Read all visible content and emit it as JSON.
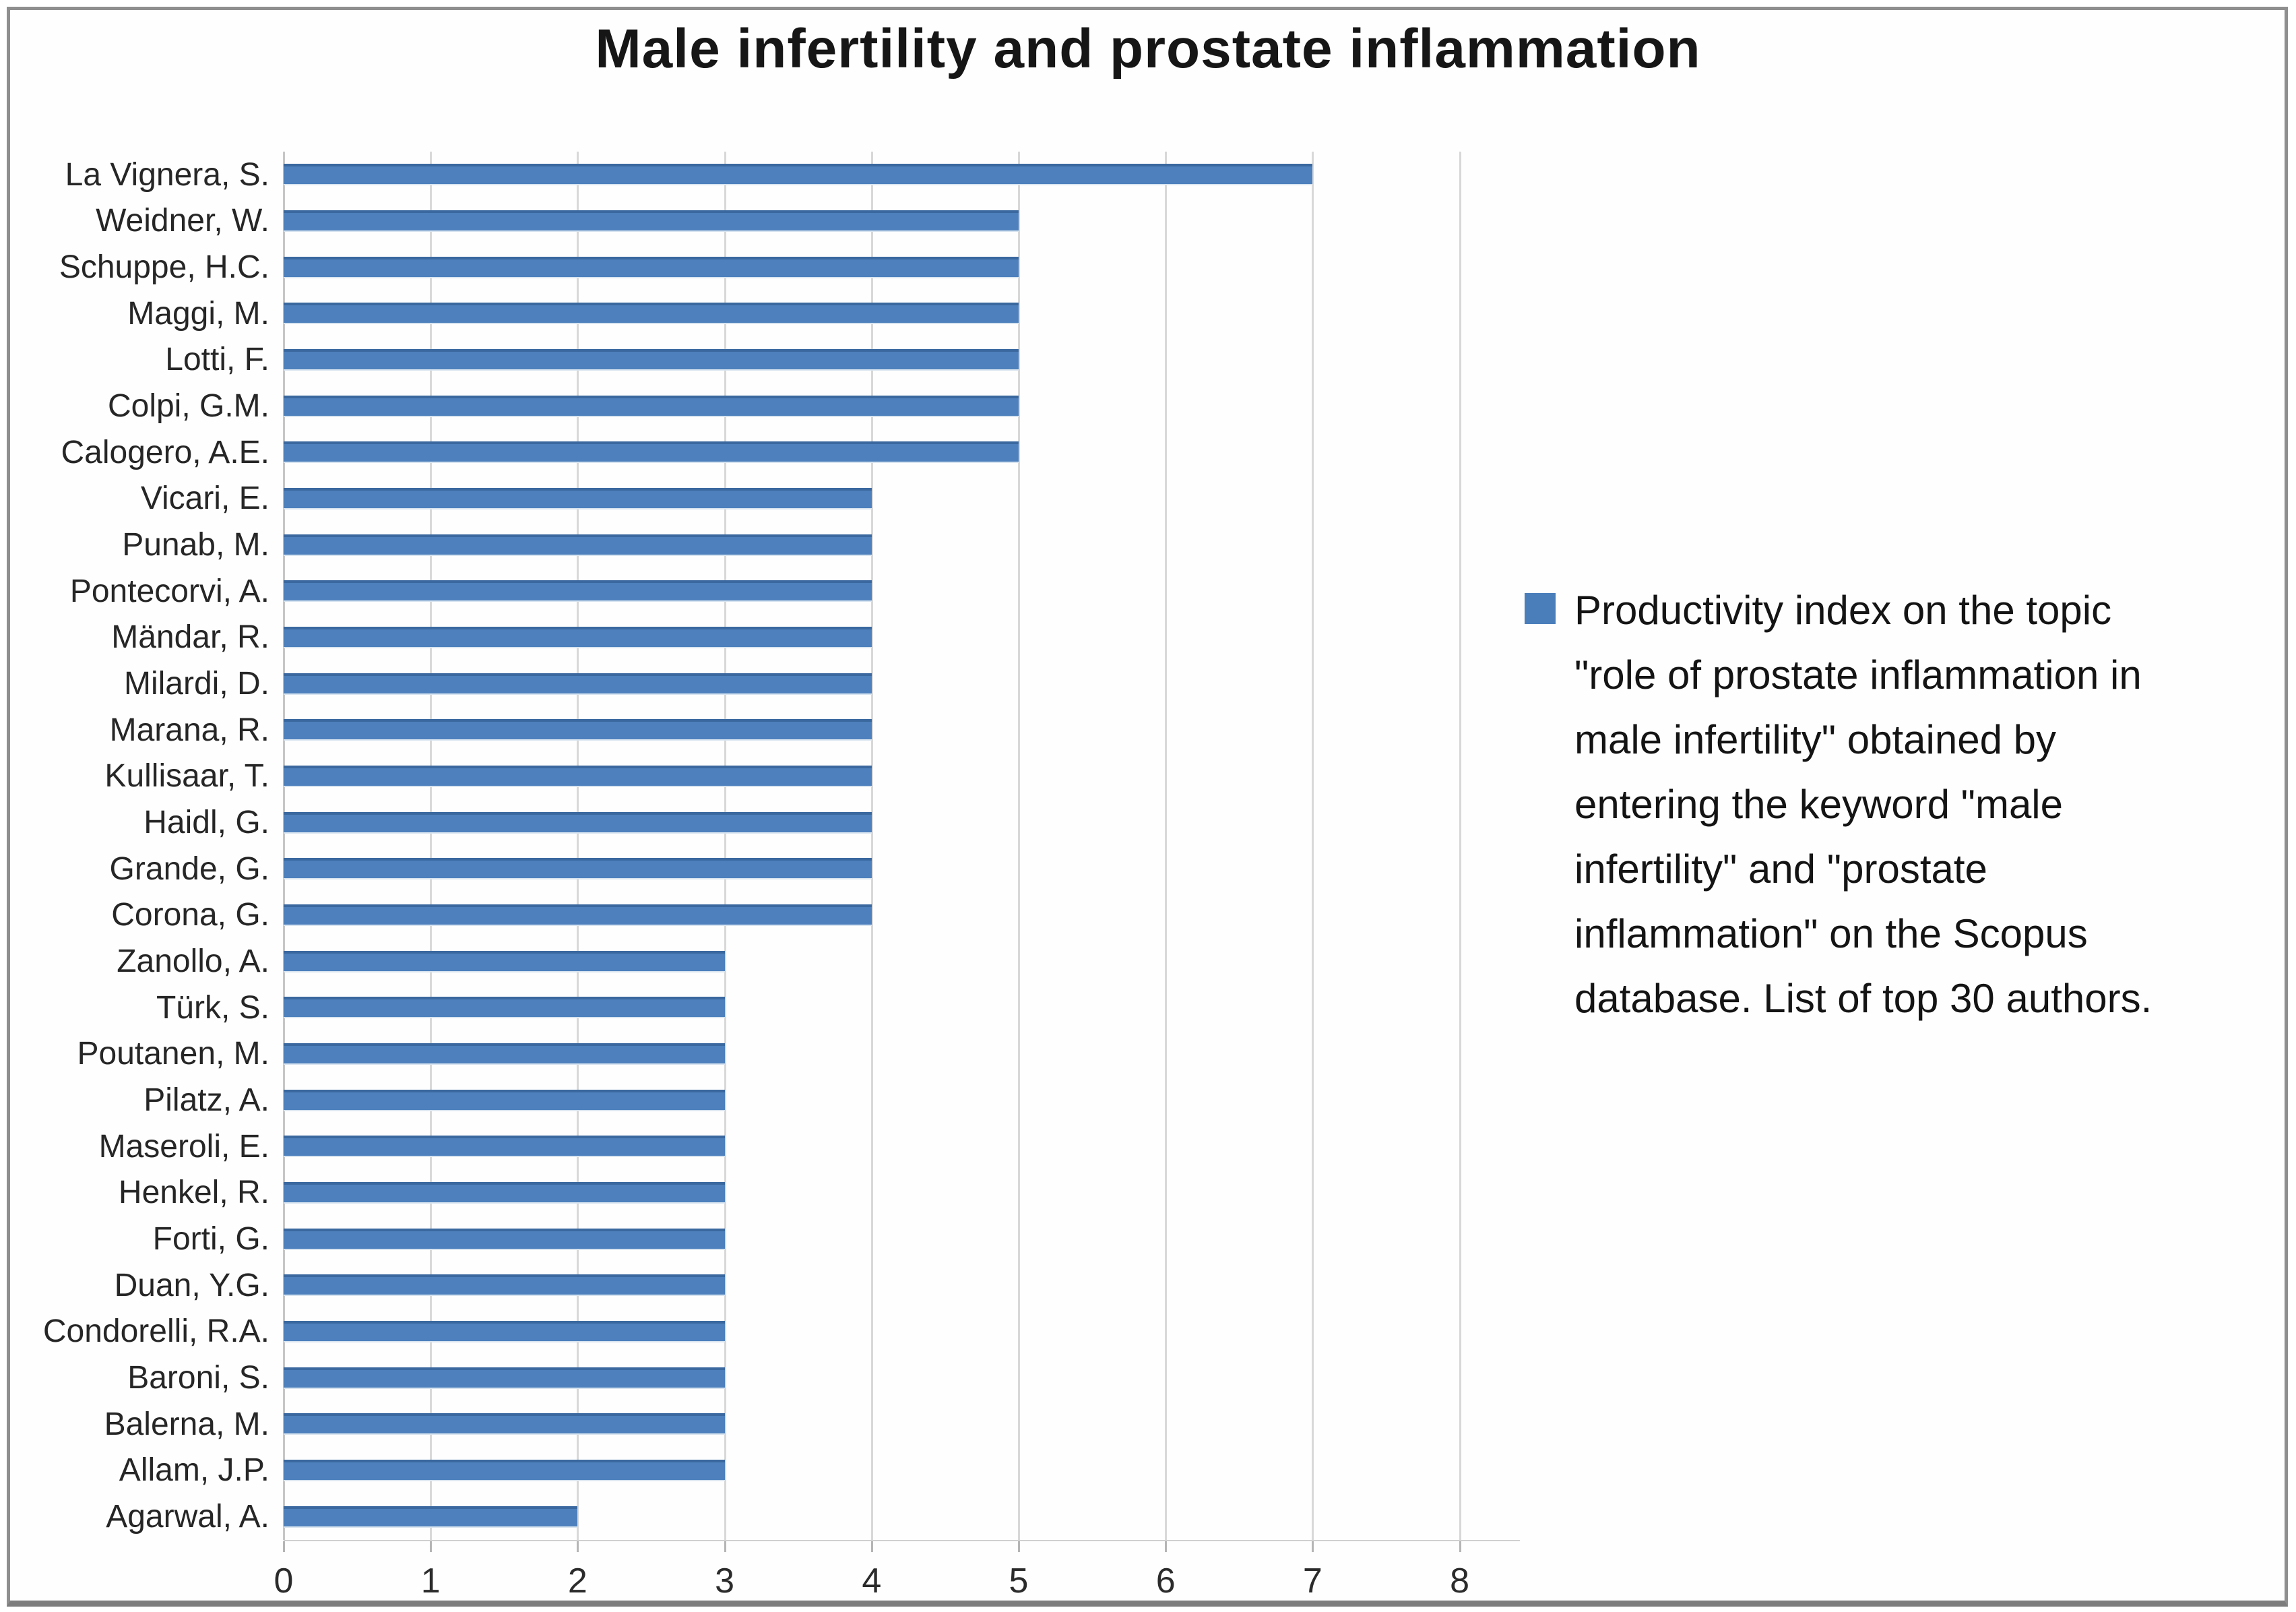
{
  "title": "Male infertility and prostate inflammation",
  "legend": {
    "marker_color": "#4a7ebb",
    "text": "Productivity index on the topic \"role of prostate inflammation in male infertility\" obtained by entering the keyword \"male infertility\" and \"prostate inflammation\" on the Scopus database. List of top 30 authors."
  },
  "chart_data": {
    "type": "bar",
    "orientation": "horizontal",
    "title": "Male infertility and prostate inflammation",
    "xlabel": "",
    "ylabel": "",
    "xlim": [
      0,
      8
    ],
    "xticks": [
      "0",
      "1",
      "2",
      "3",
      "4",
      "5",
      "6",
      "7",
      "8"
    ],
    "grid": true,
    "legend_position": "right",
    "bar_color": "#4d80bc",
    "gridline_color": "#d8d8d8",
    "categories": [
      "La Vignera, S.",
      "Weidner, W.",
      "Schuppe, H.C.",
      "Maggi, M.",
      "Lotti, F.",
      "Colpi, G.M.",
      "Calogero, A.E.",
      "Vicari, E.",
      "Punab, M.",
      "Pontecorvi, A.",
      "Mändar, R.",
      "Milardi, D.",
      "Marana, R.",
      "Kullisaar, T.",
      "Haidl, G.",
      "Grande, G.",
      "Corona, G.",
      "Zanollo, A.",
      "Türk, S.",
      "Poutanen, M.",
      "Pilatz, A.",
      "Maseroli, E.",
      "Henkel, R.",
      "Forti, G.",
      "Duan, Y.G.",
      "Condorelli, R.A.",
      "Baroni, S.",
      "Balerna, M.",
      "Allam, J.P.",
      "Agarwal, A."
    ],
    "values": [
      7,
      5,
      5,
      5,
      5,
      5,
      5,
      4,
      4,
      4,
      4,
      4,
      4,
      4,
      4,
      4,
      4,
      3,
      3,
      3,
      3,
      3,
      3,
      3,
      3,
      3,
      3,
      3,
      3,
      2
    ],
    "series_name": "Productivity index on the topic \"role of prostate inflammation in male infertility\" obtained by entering the keyword \"male infertility\" and \"prostate inflammation\" on the Scopus database. List of top 30 authors."
  }
}
